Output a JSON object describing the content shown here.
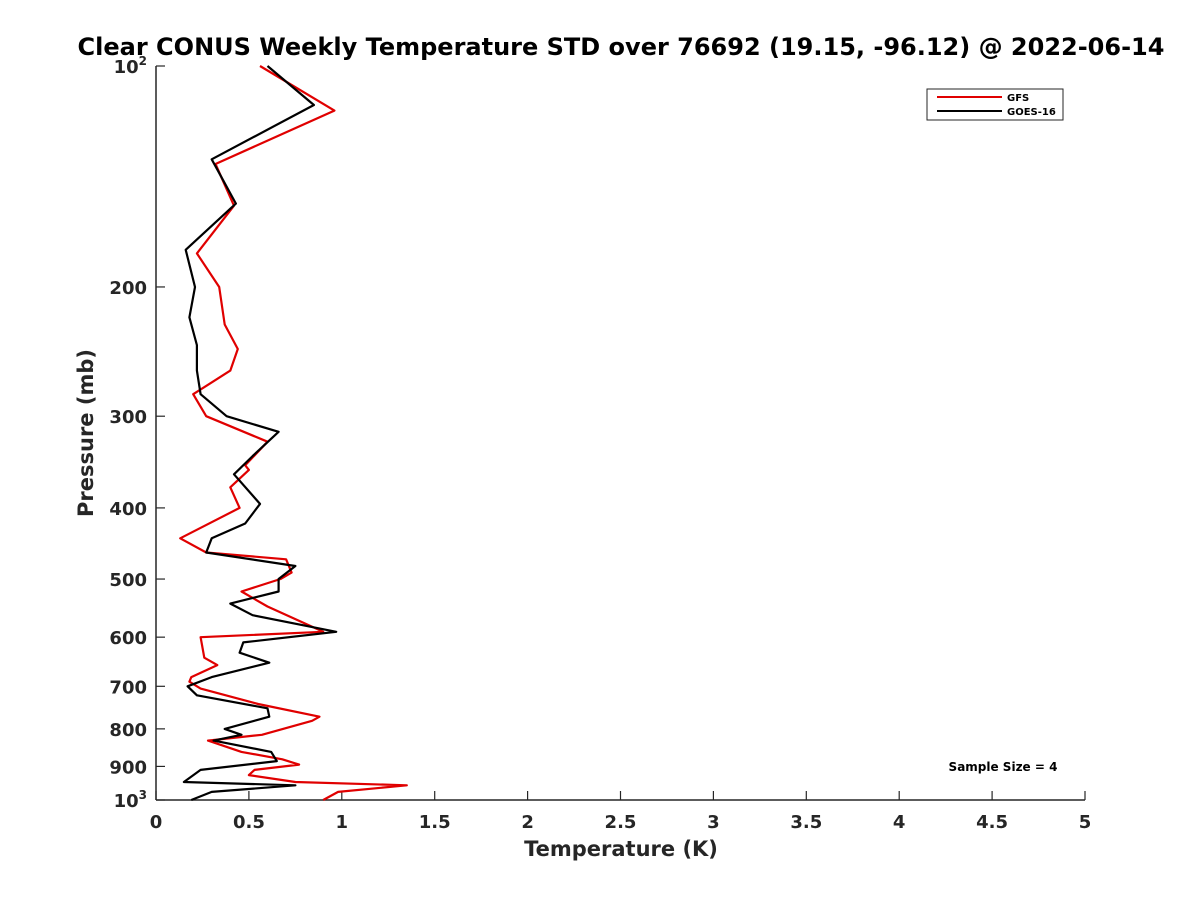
{
  "chart_data": {
    "type": "line",
    "title": "Clear CONUS Weekly Temperature STD over 76692 (19.15, -96.12) @ 2022-06-14",
    "xlabel": "Temperature (K)",
    "ylabel": "Pressure (mb)",
    "xlim": [
      0,
      5
    ],
    "ylim": [
      100,
      1000
    ],
    "y_scale": "log",
    "y_reversed": true,
    "grid": false,
    "legend_position": "top-right",
    "x_ticks": [
      0,
      0.5,
      1,
      1.5,
      2,
      2.5,
      3,
      3.5,
      4,
      4.5,
      5
    ],
    "x_tick_labels": [
      "0",
      "0.5",
      "1",
      "1.5",
      "2",
      "2.5",
      "3",
      "3.5",
      "4",
      "4.5",
      "5"
    ],
    "y_ticks": [
      {
        "value": 100,
        "base": "10",
        "exp": "2"
      },
      {
        "value": 200,
        "label": "200"
      },
      {
        "value": 300,
        "label": "300"
      },
      {
        "value": 400,
        "label": "400"
      },
      {
        "value": 500,
        "label": "500"
      },
      {
        "value": 600,
        "label": "600"
      },
      {
        "value": 700,
        "label": "700"
      },
      {
        "value": 800,
        "label": "800"
      },
      {
        "value": 900,
        "label": "900"
      },
      {
        "value": 1000,
        "base": "10",
        "exp": "3"
      }
    ],
    "annotation": "Sample Size = 4",
    "series": [
      {
        "name": "GFS",
        "color": "#e00000",
        "points": [
          [
            0.56,
            100
          ],
          [
            0.96,
            115
          ],
          [
            0.32,
            136
          ],
          [
            0.42,
            155
          ],
          [
            0.22,
            180
          ],
          [
            0.34,
            200
          ],
          [
            0.37,
            225
          ],
          [
            0.44,
            243
          ],
          [
            0.4,
            260
          ],
          [
            0.2,
            280
          ],
          [
            0.27,
            300
          ],
          [
            0.6,
            325
          ],
          [
            0.48,
            350
          ],
          [
            0.5,
            355
          ],
          [
            0.4,
            375
          ],
          [
            0.45,
            400
          ],
          [
            0.13,
            440
          ],
          [
            0.27,
            460
          ],
          [
            0.7,
            470
          ],
          [
            0.73,
            490
          ],
          [
            0.67,
            500
          ],
          [
            0.46,
            520
          ],
          [
            0.6,
            545
          ],
          [
            0.9,
            590
          ],
          [
            0.24,
            600
          ],
          [
            0.26,
            640
          ],
          [
            0.33,
            655
          ],
          [
            0.19,
            680
          ],
          [
            0.18,
            690
          ],
          [
            0.24,
            705
          ],
          [
            0.55,
            740
          ],
          [
            0.88,
            770
          ],
          [
            0.84,
            780
          ],
          [
            0.57,
            815
          ],
          [
            0.28,
            830
          ],
          [
            0.46,
            860
          ],
          [
            0.68,
            880
          ],
          [
            0.77,
            895
          ],
          [
            0.53,
            910
          ],
          [
            0.5,
            925
          ],
          [
            0.75,
            945
          ],
          [
            1.35,
            955
          ],
          [
            0.98,
            975
          ],
          [
            0.9,
            1000
          ]
        ]
      },
      {
        "name": "GOES-16",
        "color": "#000000",
        "points": [
          [
            0.6,
            100
          ],
          [
            0.85,
            113
          ],
          [
            0.3,
            134
          ],
          [
            0.43,
            154
          ],
          [
            0.16,
            178
          ],
          [
            0.21,
            200
          ],
          [
            0.18,
            220
          ],
          [
            0.22,
            240
          ],
          [
            0.22,
            260
          ],
          [
            0.24,
            280
          ],
          [
            0.38,
            300
          ],
          [
            0.66,
            315
          ],
          [
            0.52,
            340
          ],
          [
            0.42,
            360
          ],
          [
            0.56,
            395
          ],
          [
            0.48,
            420
          ],
          [
            0.3,
            440
          ],
          [
            0.27,
            460
          ],
          [
            0.75,
            480
          ],
          [
            0.66,
            500
          ],
          [
            0.66,
            520
          ],
          [
            0.4,
            540
          ],
          [
            0.52,
            560
          ],
          [
            0.97,
            590
          ],
          [
            0.47,
            610
          ],
          [
            0.45,
            630
          ],
          [
            0.61,
            650
          ],
          [
            0.3,
            680
          ],
          [
            0.17,
            700
          ],
          [
            0.22,
            720
          ],
          [
            0.6,
            750
          ],
          [
            0.61,
            770
          ],
          [
            0.37,
            800
          ],
          [
            0.46,
            815
          ],
          [
            0.31,
            830
          ],
          [
            0.62,
            860
          ],
          [
            0.65,
            885
          ],
          [
            0.24,
            910
          ],
          [
            0.15,
            945
          ],
          [
            0.75,
            955
          ],
          [
            0.3,
            975
          ],
          [
            0.19,
            1000
          ]
        ]
      }
    ]
  }
}
